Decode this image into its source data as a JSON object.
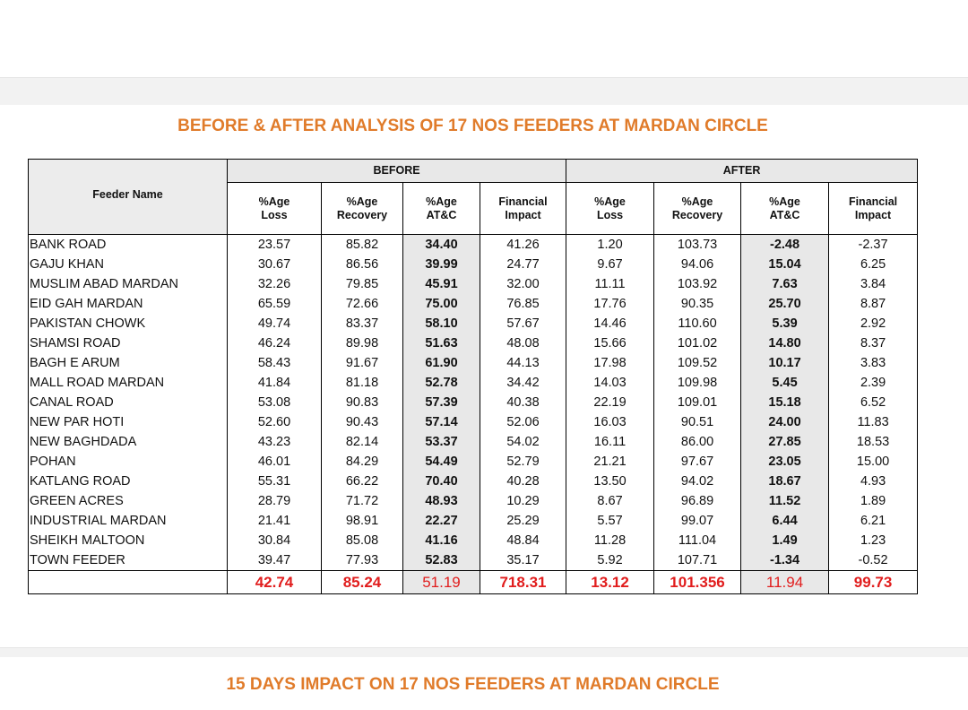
{
  "titles": {
    "analysis": "BEFORE & AFTER ANALYSIS OF 17 NOS FEEDERS AT MARDAN CIRCLE",
    "impact": "15 DAYS IMPACT ON 17 NOS FEEDERS AT MARDAN CIRCLE"
  },
  "table": {
    "name_header": "Feeder Name",
    "group_before": "BEFORE",
    "group_after": "AFTER",
    "sub_headers": {
      "loss": [
        "%Age",
        "Loss"
      ],
      "recovery": [
        "%Age",
        "Recovery"
      ],
      "atc": [
        "%Age",
        "AT&C"
      ],
      "financial": [
        "Financial",
        "Impact"
      ]
    },
    "rows": [
      [
        "BANK ROAD",
        "23.57",
        "85.82",
        "34.40",
        "41.26",
        "1.20",
        "103.73",
        "-2.48",
        "-2.37"
      ],
      [
        "GAJU KHAN",
        "30.67",
        "86.56",
        "39.99",
        "24.77",
        "9.67",
        "94.06",
        "15.04",
        "6.25"
      ],
      [
        "MUSLIM ABAD MARDAN",
        "32.26",
        "79.85",
        "45.91",
        "32.00",
        "11.11",
        "103.92",
        "7.63",
        "3.84"
      ],
      [
        "EID GAH MARDAN",
        "65.59",
        "72.66",
        "75.00",
        "76.85",
        "17.76",
        "90.35",
        "25.70",
        "8.87"
      ],
      [
        "PAKISTAN CHOWK",
        "49.74",
        "83.37",
        "58.10",
        "57.67",
        "14.46",
        "110.60",
        "5.39",
        "2.92"
      ],
      [
        "SHAMSI ROAD",
        "46.24",
        "89.98",
        "51.63",
        "48.08",
        "15.66",
        "101.02",
        "14.80",
        "8.37"
      ],
      [
        "BAGH E ARUM",
        "58.43",
        "91.67",
        "61.90",
        "44.13",
        "17.98",
        "109.52",
        "10.17",
        "3.83"
      ],
      [
        "MALL ROAD MARDAN",
        "41.84",
        "81.18",
        "52.78",
        "34.42",
        "14.03",
        "109.98",
        "5.45",
        "2.39"
      ],
      [
        "CANAL ROAD",
        "53.08",
        "90.83",
        "57.39",
        "40.38",
        "22.19",
        "109.01",
        "15.18",
        "6.52"
      ],
      [
        "NEW PAR HOTI",
        "52.60",
        "90.43",
        "57.14",
        "52.06",
        "16.03",
        "90.51",
        "24.00",
        "11.83"
      ],
      [
        "NEW BAGHDADA",
        "43.23",
        "82.14",
        "53.37",
        "54.02",
        "16.11",
        "86.00",
        "27.85",
        "18.53"
      ],
      [
        "POHAN",
        "46.01",
        "84.29",
        "54.49",
        "52.79",
        "21.21",
        "97.67",
        "23.05",
        "15.00"
      ],
      [
        "KATLANG ROAD",
        "55.31",
        "66.22",
        "70.40",
        "40.28",
        "13.50",
        "94.02",
        "18.67",
        "4.93"
      ],
      [
        "GREEN ACRES",
        "28.79",
        "71.72",
        "48.93",
        "10.29",
        "8.67",
        "96.89",
        "11.52",
        "1.89"
      ],
      [
        "INDUSTRIAL MARDAN",
        "21.41",
        "98.91",
        "22.27",
        "25.29",
        "5.57",
        "99.07",
        "6.44",
        "6.21"
      ],
      [
        "SHEIKH MALTOON",
        "30.84",
        "85.08",
        "41.16",
        "48.84",
        "11.28",
        "111.04",
        "1.49",
        "1.23"
      ],
      [
        "TOWN FEEDER",
        "39.47",
        "77.93",
        "52.83",
        "35.17",
        "5.92",
        "107.71",
        "-1.34",
        "-0.52"
      ]
    ],
    "totals": [
      "",
      "42.74",
      "85.24",
      "51.19",
      "718.31",
      "13.12",
      "101.356",
      "11.94",
      "99.73"
    ]
  },
  "colors": {
    "title": "#e07b2a",
    "totals": "#e11d1d",
    "header_fill": "#e8e8e8"
  }
}
